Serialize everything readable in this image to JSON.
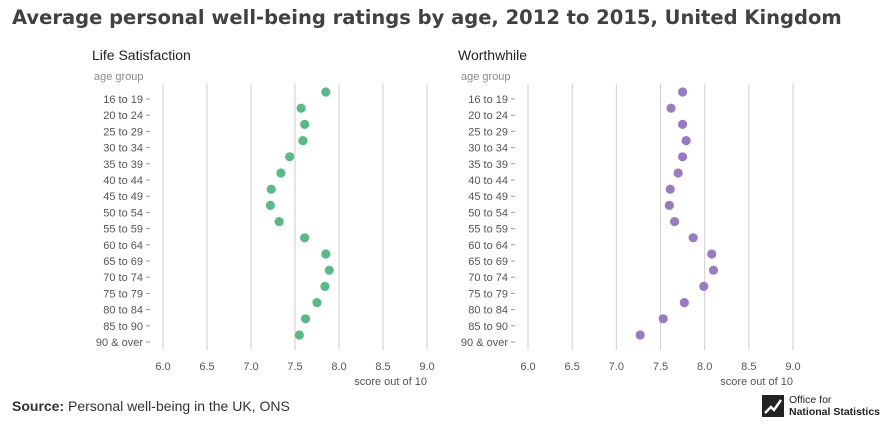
{
  "title": "Average personal well-being ratings by age, 2012 to 2015, United Kingdom",
  "source_label": "Source:",
  "source_text": "Personal well-being in the UK, ONS",
  "logo": {
    "line1": "Office for",
    "line2": "National Statistics"
  },
  "colors": {
    "life_satisfaction": "#5bb987",
    "worthwhile": "#9b7bbf"
  },
  "chart_data": [
    {
      "type": "scatter",
      "title": "Life Satisfaction",
      "category_axis_label": "age group",
      "xlabel": "score out of 10",
      "xlim": [
        6.0,
        9.0
      ],
      "xticks": [
        "6.0",
        "6.5",
        "7.0",
        "7.5",
        "8.0",
        "8.5",
        "9.0"
      ],
      "grid": true,
      "categories": [
        "16 to 19",
        "20 to 24",
        "25 to 29",
        "30 to 34",
        "35 to 39",
        "40 to 44",
        "45 to 49",
        "50 to 54",
        "55 to 59",
        "60 to 64",
        "65 to 69",
        "70 to 74",
        "75 to 79",
        "80 to 84",
        "85 to 90",
        "90 & over"
      ],
      "values": [
        7.85,
        7.57,
        7.61,
        7.59,
        7.44,
        7.34,
        7.23,
        7.22,
        7.32,
        7.61,
        7.85,
        7.89,
        7.84,
        7.75,
        7.62,
        7.55
      ]
    },
    {
      "type": "scatter",
      "title": "Worthwhile",
      "category_axis_label": "age group",
      "xlabel": "score out of 10",
      "xlim": [
        6.0,
        9.0
      ],
      "xticks": [
        "6.0",
        "6.5",
        "7.0",
        "7.5",
        "8.0",
        "8.5",
        "9.0"
      ],
      "grid": true,
      "categories": [
        "16 to 19",
        "20 to 24",
        "25 to 29",
        "30 to 34",
        "35 to 39",
        "40 to 44",
        "45 to 49",
        "50 to 54",
        "55 to 59",
        "60 to 64",
        "65 to 69",
        "70 to 74",
        "75 to 79",
        "80 to 84",
        "85 to 90",
        "90 & over"
      ],
      "values": [
        7.75,
        7.62,
        7.75,
        7.79,
        7.75,
        7.7,
        7.61,
        7.6,
        7.66,
        7.87,
        8.08,
        8.1,
        7.99,
        7.77,
        7.53,
        7.27
      ]
    }
  ]
}
